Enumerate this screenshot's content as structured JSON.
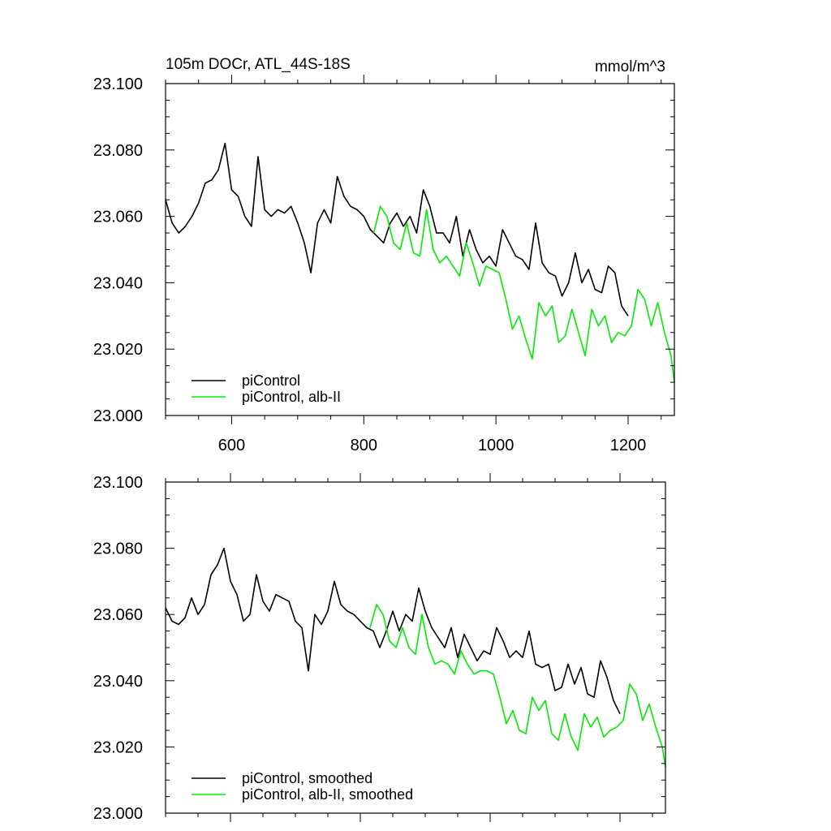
{
  "chart_data": [
    {
      "type": "line",
      "title": "105m DOCr, ATL_44S-18S",
      "units": "mmol/m^3",
      "xlabel": "",
      "ylabel": "",
      "xlim": [
        500,
        1270
      ],
      "ylim": [
        23.0,
        23.1
      ],
      "x_ticks": [
        600,
        800,
        1000,
        1200
      ],
      "y_ticks": [
        "23.000",
        "23.020",
        "23.040",
        "23.060",
        "23.080",
        "23.100"
      ],
      "x_tick_labels_shown": true,
      "legend_position": "bottom-left",
      "series": [
        {
          "name": "piControl",
          "color": "#000000",
          "x": [
            500,
            510,
            520,
            530,
            540,
            550,
            560,
            570,
            580,
            590,
            600,
            610,
            620,
            630,
            640,
            650,
            660,
            670,
            680,
            690,
            700,
            710,
            720,
            730,
            740,
            750,
            760,
            770,
            780,
            790,
            800,
            810,
            820,
            830,
            840,
            850,
            860,
            870,
            880,
            890,
            900,
            910,
            920,
            930,
            940,
            950,
            960,
            970,
            980,
            990,
            1000,
            1010,
            1020,
            1030,
            1040,
            1050,
            1060,
            1070,
            1080,
            1090,
            1100,
            1110,
            1120,
            1130,
            1140,
            1150,
            1160,
            1170,
            1180,
            1190,
            1200
          ],
          "y": [
            23.065,
            23.058,
            23.055,
            23.057,
            23.06,
            23.064,
            23.07,
            23.071,
            23.074,
            23.082,
            23.068,
            23.066,
            23.06,
            23.057,
            23.078,
            23.062,
            23.06,
            23.062,
            23.061,
            23.063,
            23.058,
            23.052,
            23.043,
            23.058,
            23.062,
            23.058,
            23.072,
            23.066,
            23.063,
            23.062,
            23.06,
            23.056,
            23.054,
            23.052,
            23.058,
            23.061,
            23.057,
            23.06,
            23.055,
            23.068,
            23.063,
            23.055,
            23.055,
            23.052,
            23.06,
            23.048,
            23.056,
            23.05,
            23.046,
            23.048,
            23.045,
            23.056,
            23.052,
            23.048,
            23.047,
            23.044,
            23.058,
            23.046,
            23.043,
            23.042,
            23.036,
            23.04,
            23.049,
            23.04,
            23.044,
            23.038,
            23.037,
            23.045,
            23.043,
            23.033,
            23.03
          ]
        },
        {
          "name": "piControl, alb-II",
          "color": "#00ee00",
          "x": [
            815,
            825,
            835,
            845,
            855,
            865,
            875,
            885,
            895,
            905,
            915,
            925,
            935,
            945,
            955,
            965,
            975,
            985,
            995,
            1005,
            1015,
            1025,
            1035,
            1045,
            1055,
            1065,
            1075,
            1085,
            1095,
            1105,
            1115,
            1125,
            1135,
            1145,
            1155,
            1165,
            1175,
            1185,
            1195,
            1205,
            1215,
            1225,
            1235,
            1245,
            1255,
            1265,
            1270
          ],
          "y": [
            23.055,
            23.063,
            23.06,
            23.052,
            23.05,
            23.058,
            23.049,
            23.048,
            23.062,
            23.05,
            23.046,
            23.048,
            23.045,
            23.042,
            23.052,
            23.046,
            23.039,
            23.045,
            23.044,
            23.043,
            23.035,
            23.026,
            23.03,
            23.023,
            23.017,
            23.034,
            23.03,
            23.033,
            23.022,
            23.024,
            23.032,
            23.025,
            23.018,
            23.032,
            23.027,
            23.03,
            23.022,
            23.025,
            23.024,
            23.027,
            23.038,
            23.035,
            23.027,
            23.034,
            23.025,
            23.018,
            23.01
          ]
        }
      ]
    },
    {
      "type": "line",
      "title": "",
      "xlabel": "",
      "ylabel": "",
      "xlim": [
        500,
        1270
      ],
      "ylim": [
        23.0,
        23.1
      ],
      "x_ticks": [
        600,
        800,
        1000,
        1200
      ],
      "y_ticks": [
        "23.000",
        "23.020",
        "23.040",
        "23.060",
        "23.080",
        "23.100"
      ],
      "x_tick_labels_shown": false,
      "legend_position": "bottom-left",
      "series": [
        {
          "name": "piControl, smoothed",
          "color": "#000000",
          "x": [
            500,
            510,
            520,
            530,
            540,
            550,
            560,
            570,
            580,
            590,
            600,
            610,
            620,
            630,
            640,
            650,
            660,
            670,
            680,
            690,
            700,
            710,
            720,
            730,
            740,
            750,
            760,
            770,
            780,
            790,
            800,
            810,
            820,
            830,
            840,
            850,
            860,
            870,
            880,
            890,
            900,
            910,
            920,
            930,
            940,
            950,
            960,
            970,
            980,
            990,
            1000,
            1010,
            1020,
            1030,
            1040,
            1050,
            1060,
            1070,
            1080,
            1090,
            1100,
            1110,
            1120,
            1130,
            1140,
            1150,
            1160,
            1170,
            1180,
            1190,
            1200
          ],
          "y": [
            23.062,
            23.058,
            23.057,
            23.059,
            23.065,
            23.06,
            23.063,
            23.072,
            23.075,
            23.08,
            23.07,
            23.066,
            23.058,
            23.06,
            23.072,
            23.064,
            23.061,
            23.066,
            23.065,
            23.064,
            23.058,
            23.056,
            23.043,
            23.06,
            23.057,
            23.061,
            23.07,
            23.063,
            23.061,
            23.06,
            23.058,
            23.056,
            23.055,
            23.05,
            23.055,
            23.061,
            23.055,
            23.06,
            23.058,
            23.068,
            23.061,
            23.056,
            23.053,
            23.05,
            23.056,
            23.047,
            23.054,
            23.05,
            23.046,
            23.049,
            23.048,
            23.056,
            23.052,
            23.047,
            23.049,
            23.047,
            23.055,
            23.045,
            23.044,
            23.045,
            23.037,
            23.038,
            23.045,
            23.039,
            23.044,
            23.036,
            23.035,
            23.046,
            23.041,
            23.034,
            23.03
          ]
        },
        {
          "name": "piControl, alb-II, smoothed",
          "color": "#00ee00",
          "x": [
            815,
            825,
            835,
            845,
            855,
            865,
            875,
            885,
            895,
            905,
            915,
            925,
            935,
            945,
            955,
            965,
            975,
            985,
            995,
            1005,
            1015,
            1025,
            1035,
            1045,
            1055,
            1065,
            1075,
            1085,
            1095,
            1105,
            1115,
            1125,
            1135,
            1145,
            1155,
            1165,
            1175,
            1185,
            1195,
            1205,
            1215,
            1225,
            1235,
            1245,
            1255,
            1265,
            1270
          ],
          "y": [
            23.056,
            23.063,
            23.06,
            23.052,
            23.05,
            23.056,
            23.05,
            23.048,
            23.06,
            23.05,
            23.045,
            23.046,
            23.045,
            23.042,
            23.049,
            23.045,
            23.042,
            23.043,
            23.043,
            23.042,
            23.035,
            23.027,
            23.031,
            23.025,
            23.024,
            23.035,
            23.031,
            23.034,
            23.024,
            23.022,
            23.03,
            23.023,
            23.019,
            23.03,
            23.026,
            23.029,
            23.023,
            23.025,
            23.026,
            23.028,
            23.039,
            23.036,
            23.028,
            23.033,
            23.026,
            23.02,
            23.014
          ]
        }
      ]
    }
  ]
}
